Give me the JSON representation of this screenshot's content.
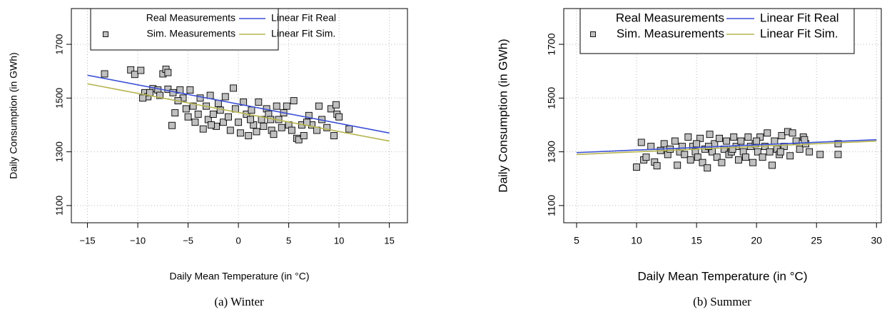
{
  "chart_data": [
    {
      "type": "scatter",
      "caption": "(a) Winter",
      "xlabel": "Daily Mean Temperature (in °C)",
      "ylabel": "Daily Consumption (in GWh)",
      "xlim": [
        -16.6,
        16.8
      ],
      "ylim": [
        1036,
        1833
      ],
      "xticks": [
        {
          "value": -15,
          "label": "−15"
        },
        {
          "value": -10,
          "label": "−10"
        },
        {
          "value": -5,
          "label": "−5"
        },
        0,
        5,
        10,
        15
      ],
      "yticks": [
        1100,
        1300,
        1500,
        1700
      ],
      "grid": true,
      "series": [
        {
          "name": "Real Measurements",
          "type": "scatter",
          "x": [],
          "y": []
        },
        {
          "name": "Sim. Measurements",
          "type": "scatter",
          "color": "#c0c0c0",
          "x": [
            -13.3,
            -10.7,
            -10.3,
            -9.7,
            -7.5,
            -7.2,
            -7.0,
            -9.3,
            -9.0,
            -8.5,
            -8.0,
            -7.8,
            -7.0,
            -6.5,
            -6.3,
            -6.6,
            -5.8,
            -5.5,
            -5.2,
            -4.8,
            -4.5,
            -4.3,
            -4.0,
            -3.8,
            -3.5,
            -3.2,
            -3.0,
            -2.8,
            -2.5,
            -2.2,
            -2.0,
            -1.8,
            -1.5,
            -1.3,
            -1.0,
            -0.8,
            -0.5,
            -0.3,
            0.0,
            0.2,
            0.5,
            0.8,
            1.0,
            1.3,
            1.5,
            1.8,
            2.0,
            2.3,
            2.5,
            2.8,
            3.0,
            3.3,
            3.5,
            3.8,
            4.0,
            4.3,
            4.5,
            4.8,
            5.0,
            5.3,
            5.5,
            5.8,
            6.0,
            6.3,
            6.5,
            7.0,
            7.3,
            7.8,
            8.0,
            8.3,
            8.8,
            9.2,
            9.5,
            9.7,
            9.8,
            10.0,
            11.0,
            -9.5,
            -8.8,
            -6.0,
            -5.0,
            -2.7,
            1.2,
            3.2,
            6.8
          ],
          "y": [
            1590,
            1605,
            1588,
            1603,
            1590,
            1607,
            1595,
            1520,
            1505,
            1535,
            1530,
            1510,
            1533,
            1520,
            1445,
            1398,
            1530,
            1500,
            1460,
            1530,
            1470,
            1410,
            1440,
            1500,
            1385,
            1470,
            1420,
            1510,
            1440,
            1395,
            1480,
            1455,
            1410,
            1505,
            1430,
            1380,
            1537,
            1460,
            1410,
            1370,
            1485,
            1440,
            1360,
            1455,
            1400,
            1375,
            1485,
            1420,
            1395,
            1460,
            1440,
            1380,
            1365,
            1470,
            1420,
            1390,
            1445,
            1470,
            1400,
            1380,
            1490,
            1350,
            1345,
            1400,
            1360,
            1435,
            1400,
            1380,
            1470,
            1420,
            1390,
            1460,
            1360,
            1475,
            1440,
            1430,
            1385,
            1500,
            1520,
            1490,
            1430,
            1400,
            1420,
            1420,
            1410
          ]
        },
        {
          "name": "Linear Fit Real",
          "type": "line",
          "color": "#3b4fd6",
          "x": [
            -15,
            15
          ],
          "y": [
            1585,
            1370
          ]
        },
        {
          "name": "Linear Fit Sim.",
          "type": "line",
          "color": "#b5b550",
          "x": [
            -15,
            15
          ],
          "y": [
            1553,
            1340
          ]
        }
      ]
    },
    {
      "type": "scatter",
      "caption": "(b) Summer",
      "xlabel": "Daily Mean Temperature (in °C)",
      "ylabel": "Daily Consumption (in GWh)",
      "xlim": [
        3.93,
        30.4
      ],
      "ylim": [
        1036,
        1833
      ],
      "xticks": [
        5,
        10,
        15,
        20,
        25,
        30
      ],
      "yticks": [
        1100,
        1300,
        1500,
        1700
      ],
      "grid": true,
      "series": [
        {
          "name": "Real Measurements",
          "type": "scatter",
          "x": [],
          "y": []
        },
        {
          "name": "Sim. Measurements",
          "type": "scatter",
          "color": "#c0c0c0",
          "x": [
            10.0,
            10.4,
            10.6,
            10.8,
            11.2,
            11.5,
            11.7,
            12.3,
            12.6,
            12.8,
            13.2,
            13.4,
            13.6,
            13.8,
            14.0,
            14.3,
            14.5,
            14.7,
            14.9,
            15.1,
            15.3,
            15.5,
            15.7,
            15.9,
            16.1,
            16.3,
            16.5,
            16.7,
            16.9,
            17.1,
            17.3,
            17.5,
            17.7,
            17.9,
            18.1,
            18.3,
            18.5,
            18.7,
            18.9,
            19.1,
            19.3,
            19.5,
            19.7,
            19.9,
            20.1,
            20.3,
            20.5,
            20.7,
            20.9,
            21.1,
            21.3,
            21.5,
            21.7,
            21.9,
            22.1,
            22.3,
            22.6,
            22.8,
            23.0,
            23.3,
            23.6,
            23.9,
            24.1,
            24.4,
            25.3,
            26.8,
            26.8,
            12.0,
            15.0,
            16.0,
            18.0,
            20.0,
            22.0,
            24.0
          ],
          "y": [
            1243,
            1335,
            1270,
            1280,
            1320,
            1262,
            1248,
            1330,
            1290,
            1310,
            1340,
            1250,
            1300,
            1320,
            1290,
            1355,
            1270,
            1320,
            1300,
            1280,
            1350,
            1260,
            1310,
            1240,
            1365,
            1300,
            1330,
            1280,
            1350,
            1260,
            1310,
            1340,
            1290,
            1300,
            1355,
            1320,
            1270,
            1340,
            1300,
            1280,
            1355,
            1320,
            1260,
            1330,
            1300,
            1355,
            1280,
            1320,
            1370,
            1300,
            1250,
            1340,
            1310,
            1290,
            1360,
            1320,
            1375,
            1285,
            1370,
            1340,
            1310,
            1355,
            1330,
            1300,
            1290,
            1330,
            1290,
            1305,
            1330,
            1320,
            1310,
            1340,
            1300,
            1345
          ]
        },
        {
          "name": "Linear Fit Real",
          "type": "line",
          "color": "#3b4fd6",
          "x": [
            5,
            30
          ],
          "y": [
            1297,
            1345
          ]
        },
        {
          "name": "Linear Fit Sim.",
          "type": "line",
          "color": "#b5b550",
          "x": [
            5,
            30
          ],
          "y": [
            1290,
            1340
          ]
        }
      ]
    }
  ]
}
